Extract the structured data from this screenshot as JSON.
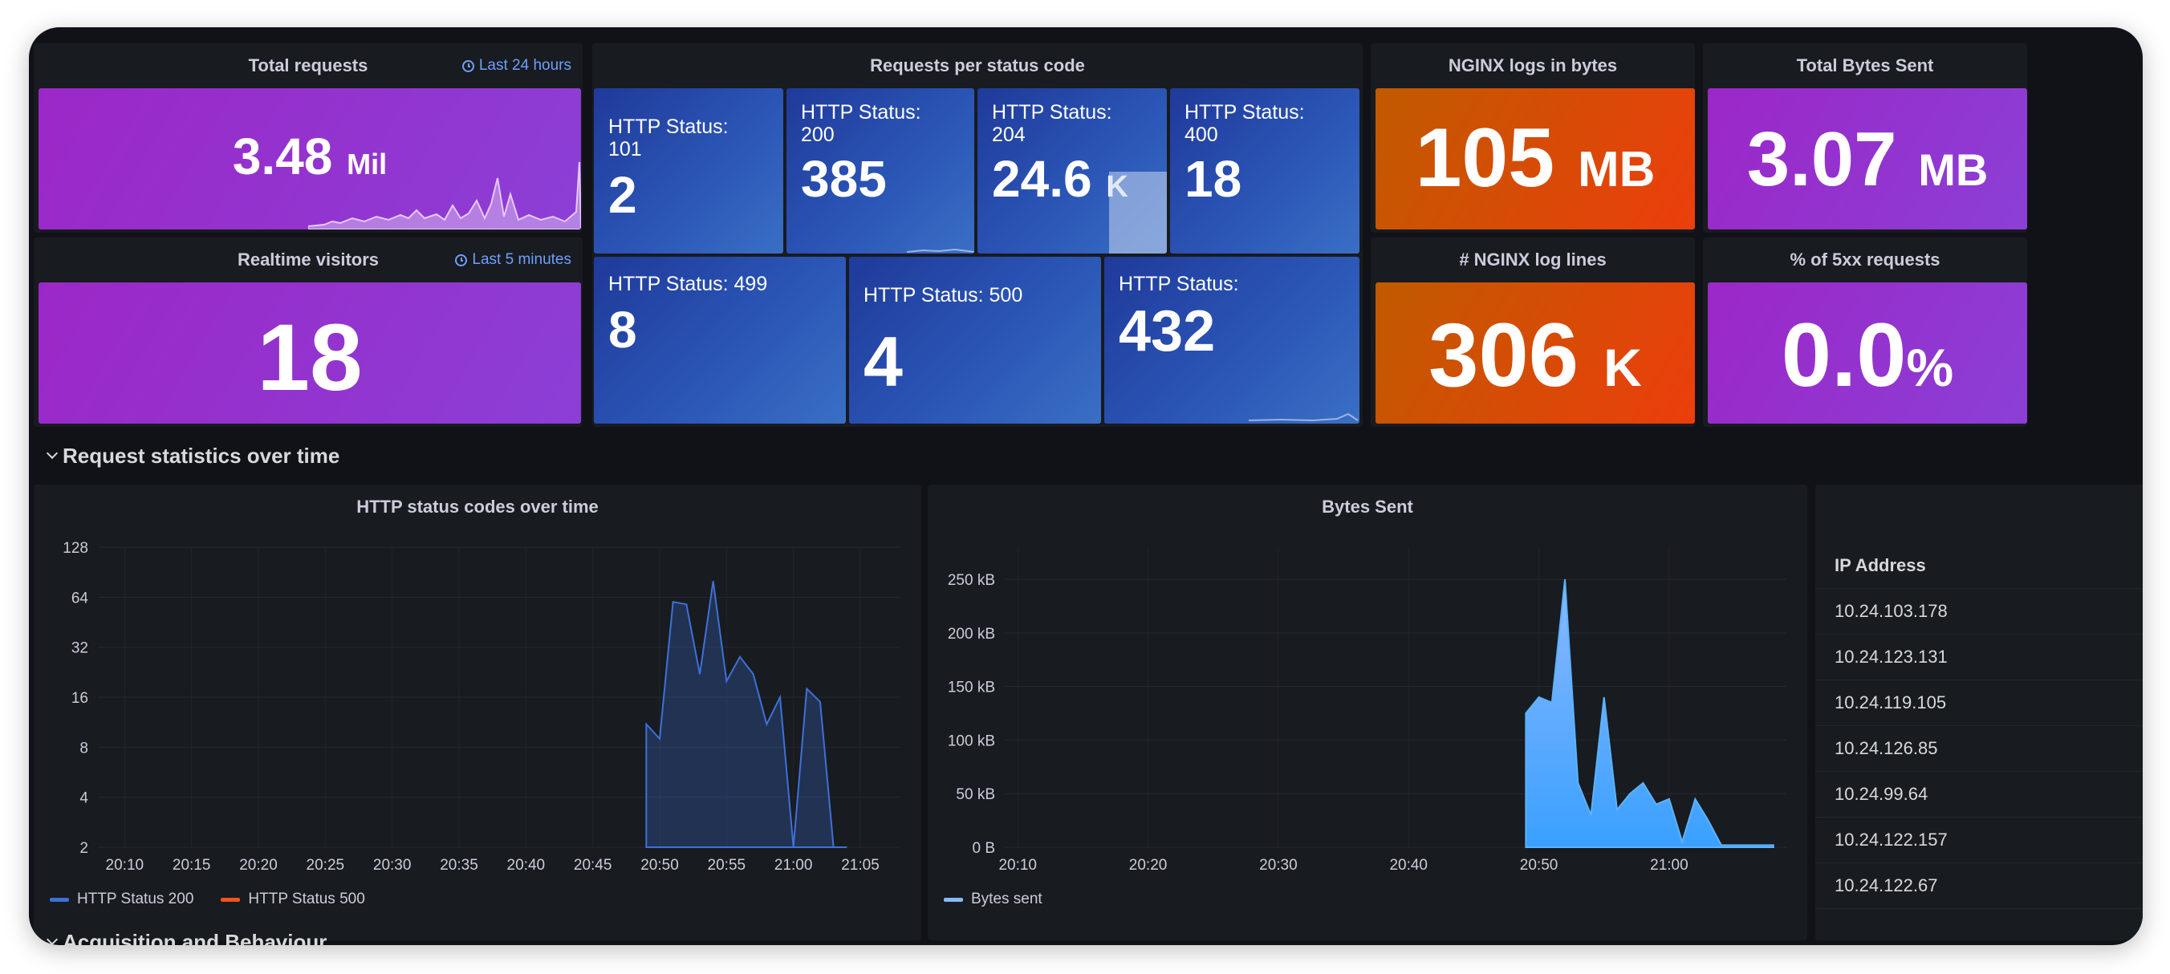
{
  "stats": {
    "total_requests": {
      "title": "Total requests",
      "time_range": "Last 24 hours",
      "value": "3.48",
      "unit": "Mil"
    },
    "realtime_visitors": {
      "title": "Realtime visitors",
      "time_range": "Last 5 minutes",
      "value": "18"
    },
    "status_codes": {
      "title": "Requests per status code",
      "tiles": [
        {
          "label": "HTTP Status: 101",
          "value": "2",
          "unit": ""
        },
        {
          "label": "HTTP Status: 200",
          "value": "385",
          "unit": ""
        },
        {
          "label": "HTTP Status: 204",
          "value": "24.6",
          "unit": "K"
        },
        {
          "label": "HTTP Status: 400",
          "value": "18",
          "unit": ""
        },
        {
          "label": "HTTP Status: 499",
          "value": "8",
          "unit": ""
        },
        {
          "label": "HTTP Status: 500",
          "value": "4",
          "unit": ""
        },
        {
          "label": "HTTP Status:",
          "value": "432",
          "unit": ""
        }
      ]
    },
    "nginx_bytes": {
      "title": "NGINX logs in bytes",
      "value": "105",
      "unit": "MB"
    },
    "bytes_sent": {
      "title": "Total Bytes Sent",
      "value": "3.07",
      "unit": "MB"
    },
    "nginx_lines": {
      "title": "# NGINX log lines",
      "value": "306",
      "unit": "K"
    },
    "pct_5xx": {
      "title": "% of 5xx requests",
      "value": "0.0",
      "unit": "%"
    }
  },
  "colors": {
    "purple": "#9c27c7",
    "orange": "#ec3e0c",
    "blue": "#2c58b8",
    "series_200": "#3d71d9",
    "series_500": "#f2541b",
    "bytes": "#5bb3ff"
  },
  "sections": {
    "request_stats": "Request statistics over time",
    "acquisition": "Acquisition and Behaviour"
  },
  "chart_data": [
    {
      "type": "area",
      "title": "HTTP status codes over time",
      "y_scale": "log2",
      "y_ticks": [
        "128",
        "64",
        "32",
        "16",
        "8",
        "4",
        "2"
      ],
      "x_ticks": [
        "20:10",
        "20:15",
        "20:20",
        "20:25",
        "20:30",
        "20:35",
        "20:40",
        "20:45",
        "20:50",
        "20:55",
        "21:00",
        "21:05"
      ],
      "series": [
        {
          "name": "HTTP Status 200",
          "x": [
            "20:49",
            "20:50",
            "20:51",
            "20:52",
            "20:53",
            "20:54",
            "20:55",
            "20:56",
            "20:57",
            "20:58",
            "20:59",
            "21:00",
            "21:01",
            "21:02",
            "21:03",
            "21:04"
          ],
          "values": [
            11,
            9,
            60,
            58,
            22,
            80,
            20,
            28,
            22,
            11,
            16,
            2,
            18,
            15,
            2,
            2
          ]
        },
        {
          "name": "HTTP Status 500",
          "x": [],
          "values": []
        }
      ]
    },
    {
      "type": "area",
      "title": "Bytes Sent",
      "y_ticks": [
        "250 kB",
        "200 kB",
        "150 kB",
        "100 kB",
        "50 kB",
        "0 B"
      ],
      "x_ticks": [
        "20:10",
        "20:20",
        "20:30",
        "20:40",
        "20:50",
        "21:00"
      ],
      "series": [
        {
          "name": "Bytes sent",
          "x": [
            "20:49",
            "20:50",
            "20:51",
            "20:52",
            "20:53",
            "20:54",
            "20:55",
            "20:56",
            "20:57",
            "20:58",
            "20:59",
            "21:00",
            "21:01",
            "21:02",
            "21:03",
            "21:04",
            "21:05",
            "21:06",
            "21:07",
            "21:08"
          ],
          "values": [
            125,
            140,
            135,
            250,
            60,
            30,
            140,
            35,
            50,
            60,
            40,
            45,
            5,
            45,
            25,
            2,
            2,
            2,
            2,
            2
          ]
        }
      ]
    }
  ],
  "ip_table": {
    "header": "IP Address",
    "rows": [
      "10.24.103.178",
      "10.24.123.131",
      "10.24.119.105",
      "10.24.126.85",
      "10.24.99.64",
      "10.24.122.157",
      "10.24.122.67"
    ]
  }
}
